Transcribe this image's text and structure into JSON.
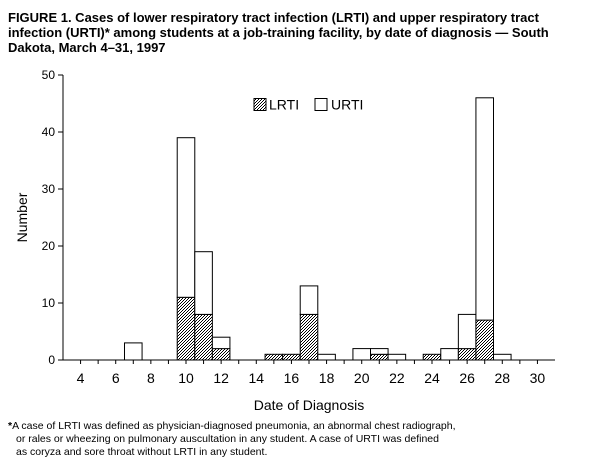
{
  "figure": {
    "title": "FIGURE 1. Cases of lower respiratory tract infection (LRTI) and upper respiratory tract infection (URTI)* among students at a job-training facility, by date of diagnosis — South Dakota, March 4–31, 1997"
  },
  "footnote": {
    "marker": "*",
    "text_line1": "A case of LRTI was defined as physician-diagnosed pneumonia, an abnormal chest radiograph,",
    "text_line2": "or rales or wheezing on pulmonary auscultation in any student. A case of URTI was defined",
    "text_line3": "as coryza and sore throat without LRTI in any student."
  },
  "chart_data": {
    "type": "bar",
    "stacked": true,
    "xlabel": "Date of Diagnosis",
    "ylabel": "Number",
    "xlim": [
      3,
      31
    ],
    "ylim": [
      0,
      50
    ],
    "x_ticks": [
      4,
      6,
      8,
      10,
      12,
      14,
      16,
      18,
      20,
      22,
      24,
      26,
      28,
      30
    ],
    "y_ticks": [
      0,
      10,
      20,
      30,
      40,
      50
    ],
    "legend_position": "top-center",
    "grid": false,
    "x": [
      4,
      5,
      6,
      7,
      8,
      9,
      10,
      11,
      12,
      13,
      14,
      15,
      16,
      17,
      18,
      19,
      20,
      21,
      22,
      23,
      24,
      25,
      26,
      27,
      28,
      29,
      30
    ],
    "series": [
      {
        "name": "LRTI",
        "fill": "hatched",
        "values": [
          0,
          0,
          0,
          0,
          0,
          0,
          11,
          8,
          2,
          0,
          0,
          1,
          1,
          8,
          0,
          0,
          0,
          1,
          0,
          0,
          1,
          0,
          2,
          7,
          0,
          0,
          0
        ]
      },
      {
        "name": "URTI",
        "fill": "white",
        "values": [
          0,
          0,
          0,
          3,
          0,
          0,
          28,
          11,
          2,
          0,
          0,
          0,
          0,
          5,
          1,
          0,
          2,
          1,
          1,
          0,
          0,
          2,
          6,
          39,
          1,
          0,
          0
        ]
      }
    ]
  }
}
